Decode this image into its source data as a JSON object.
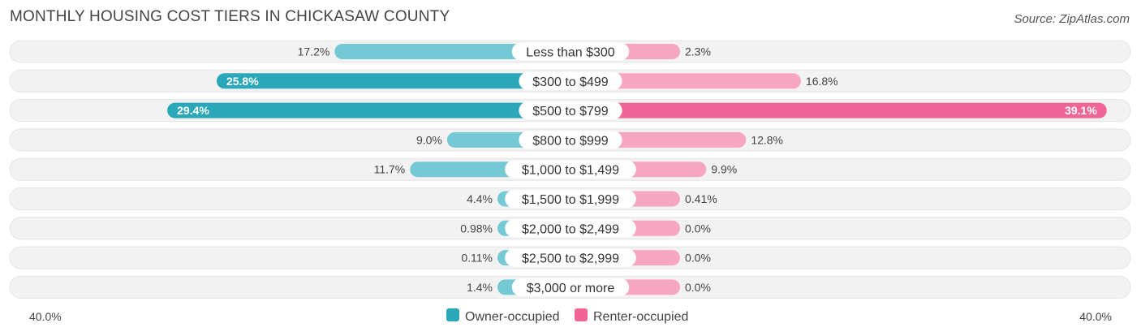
{
  "header": {
    "title": "MONTHLY HOUSING COST TIERS IN CHICKASAW COUNTY",
    "source": "Source: ZipAtlas.com"
  },
  "colors": {
    "owner_dark": "#2aa7b9",
    "owner_light": "#74c9d4",
    "renter_dark": "#f06595",
    "renter_light": "#f7a6c1",
    "row_bg": "#f2f2f2"
  },
  "chart_data": {
    "type": "bar",
    "orientation": "diverging-horizontal",
    "categories": [
      "Less than $300",
      "$300 to $499",
      "$500 to $799",
      "$800 to $999",
      "$1,000 to $1,499",
      "$1,500 to $1,999",
      "$2,000 to $2,499",
      "$2,500 to $2,999",
      "$3,000 or more"
    ],
    "series": [
      {
        "name": "Owner-occupied",
        "values": [
          17.2,
          25.8,
          29.4,
          9.0,
          11.7,
          4.4,
          0.98,
          0.11,
          1.4
        ],
        "labels": [
          "17.2%",
          "25.8%",
          "29.4%",
          "9.0%",
          "11.7%",
          "4.4%",
          "0.98%",
          "0.11%",
          "1.4%"
        ]
      },
      {
        "name": "Renter-occupied",
        "values": [
          2.3,
          16.8,
          39.1,
          12.8,
          9.9,
          0.41,
          0.0,
          0.0,
          0.0
        ],
        "labels": [
          "2.3%",
          "16.8%",
          "39.1%",
          "12.8%",
          "9.9%",
          "0.41%",
          "0.0%",
          "0.0%",
          "0.0%"
        ]
      }
    ],
    "axis": {
      "left_label": "40.0%",
      "right_label": "40.0%",
      "max": 40.0
    },
    "legend_position": "bottom-center"
  }
}
